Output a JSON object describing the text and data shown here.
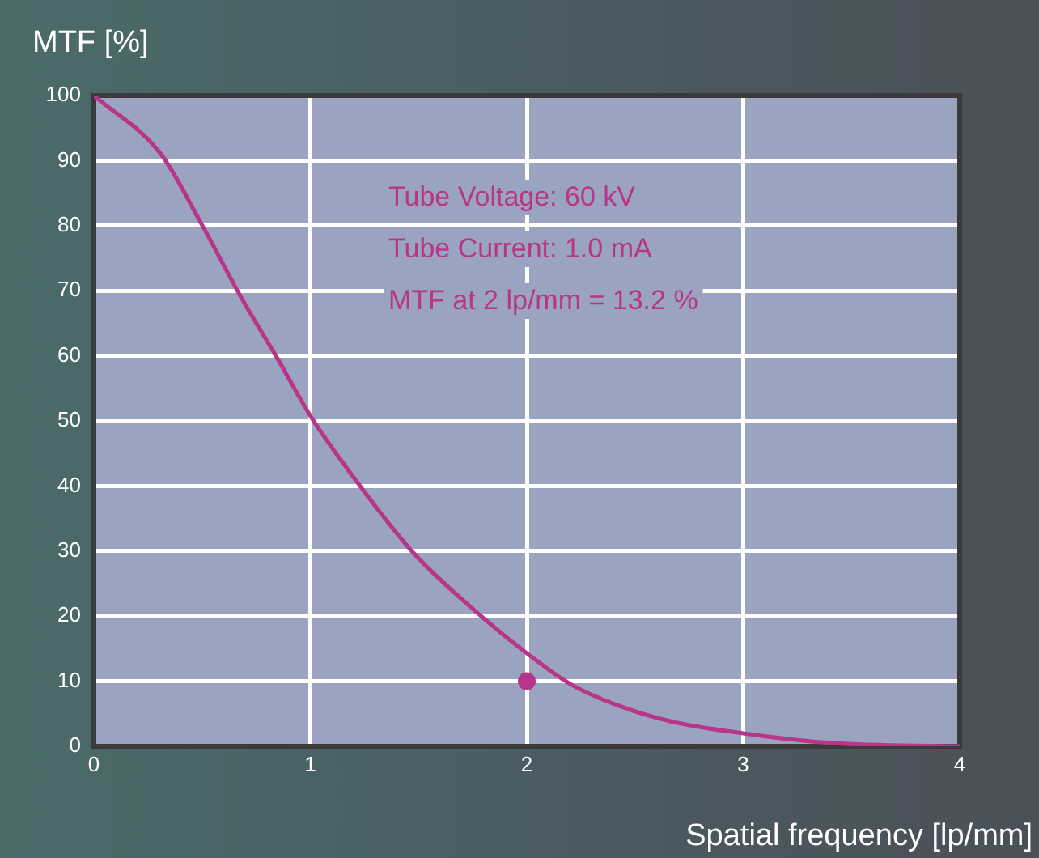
{
  "chart_data": {
    "type": "line",
    "xlabel": "Spatial frequency [lp/mm]",
    "ylabel": "MTF [%]",
    "annotations": [
      "Tube Voltage: 60 kV",
      "Tube Current: 1.0 mA",
      "MTF at 2 lp/mm = 13.2 %"
    ],
    "xlim": [
      0,
      4
    ],
    "xticks": [
      0,
      1,
      2,
      3,
      4
    ],
    "ylim": [
      0,
      100
    ],
    "yticks": [
      0,
      10,
      20,
      30,
      40,
      50,
      60,
      70,
      80,
      90,
      100
    ],
    "grid": true,
    "legend": false,
    "marker": "none",
    "line_style": "solid",
    "series": [
      {
        "type": "line",
        "color": "#b8358a",
        "x": [
          0,
          0.31,
          0.49,
          0.68,
          0.85,
          1.0,
          1.23,
          1.48,
          1.8,
          2.0,
          2.2,
          2.42,
          2.67,
          3.0,
          3.41,
          4.0
        ],
        "values": [
          100,
          91,
          80.7,
          69,
          59.5,
          50.8,
          40,
          29.6,
          19.7,
          14.3,
          9.6,
          6.3,
          3.8,
          2,
          0.5,
          0
        ]
      },
      {
        "type": "scatter",
        "color": "#b8358a",
        "marker": "circle",
        "x": [
          2
        ],
        "values": [
          10
        ]
      }
    ]
  }
}
